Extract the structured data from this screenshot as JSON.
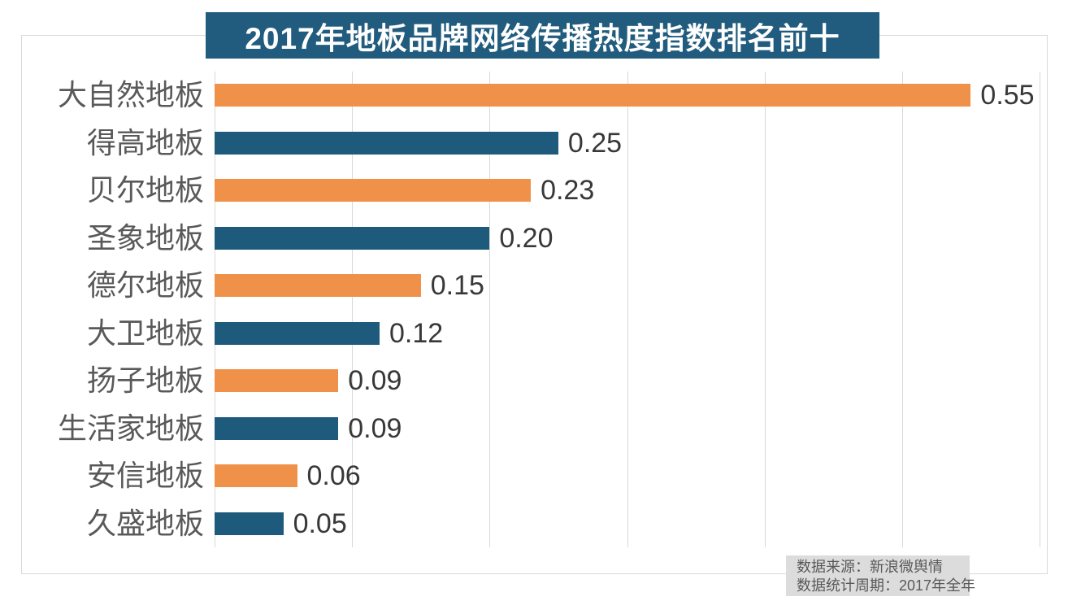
{
  "title": "2017年地板品牌网络传播热度指数排名前十",
  "source_note": {
    "line1": "数据来源：新浪微舆情",
    "line2": "数据统计周期：2017年全年"
  },
  "colors": {
    "banner_bg": "#215C7E",
    "banner_text": "#FFFFFF",
    "bar_orange": "#F0914A",
    "bar_teal": "#1E5A7C",
    "grid_line": "#D9D9D9",
    "frame_border": "#D9D9D9",
    "category_text": "#595959",
    "value_text": "#383838",
    "source_bg": "#DCDCDC",
    "source_text": "#595959"
  },
  "chart_data": {
    "type": "bar",
    "orientation": "horizontal",
    "title": "2017年地板品牌网络传播热度指数排名前十",
    "categories": [
      "大自然地板",
      "得高地板",
      "贝尔地板",
      "圣象地板",
      "德尔地板",
      "大卫地板",
      "扬子地板",
      "生活家地板",
      "安信地板",
      "久盛地板"
    ],
    "values": [
      0.55,
      0.25,
      0.23,
      0.2,
      0.15,
      0.12,
      0.09,
      0.09,
      0.06,
      0.05
    ],
    "value_labels": [
      "0.55",
      "0.25",
      "0.23",
      "0.20",
      "0.15",
      "0.12",
      "0.09",
      "0.09",
      "0.06",
      "0.05"
    ],
    "xlabel": "",
    "ylabel": "",
    "xlim": [
      0,
      0.6
    ],
    "gridline_interval": 0.1,
    "grid": true,
    "legend": false,
    "bar_colors_alternating": [
      "#F0914A",
      "#1E5A7C"
    ]
  }
}
